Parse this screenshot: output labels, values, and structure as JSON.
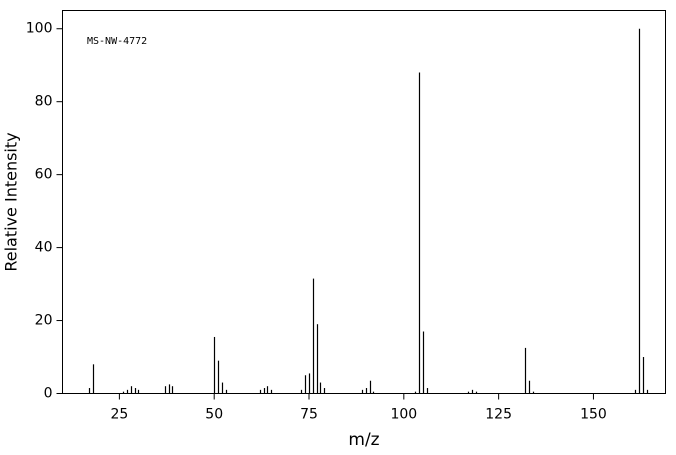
{
  "chart_data": {
    "type": "stick",
    "annotation": "MS-NW-4772",
    "xlabel": "m/z",
    "ylabel": "Relative Intensity",
    "x": [
      17,
      18,
      26,
      27,
      28,
      29,
      30,
      37,
      38,
      39,
      50,
      51,
      52,
      53,
      62,
      63,
      64,
      65,
      73,
      74,
      75,
      76,
      77,
      78,
      79,
      89,
      90,
      91,
      92,
      103,
      104,
      105,
      106,
      117,
      118,
      119,
      132,
      133,
      134,
      161,
      162,
      163,
      164
    ],
    "values": [
      1.5,
      8,
      0.5,
      1,
      2,
      1.5,
      1,
      2,
      2.5,
      2,
      15.5,
      9,
      3,
      1,
      1,
      1.5,
      2,
      1,
      1,
      5,
      5.5,
      31.5,
      19,
      3,
      1.5,
      1,
      1.5,
      3.5,
      0.5,
      0.5,
      88,
      17,
      1.5,
      0.5,
      1,
      0.5,
      12.5,
      3.5,
      0.5,
      1,
      100,
      10,
      1
    ],
    "color": "#000000",
    "xlim": [
      10,
      169
    ],
    "xticks": [
      25,
      50,
      75,
      100,
      125,
      150
    ],
    "ylim": [
      0,
      105
    ],
    "yticks": [
      0,
      20,
      40,
      60,
      80,
      100
    ],
    "grid": false
  }
}
